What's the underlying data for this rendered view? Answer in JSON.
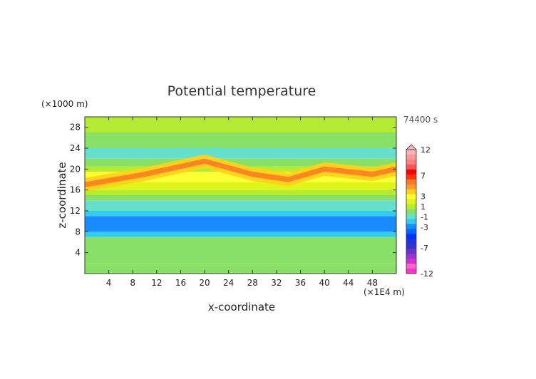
{
  "chart_data": {
    "type": "heatmap",
    "title": "Potential temperature",
    "xlabel": "x-coordinate",
    "ylabel": "z-coordinate",
    "x_unit": "(×1E4 m)",
    "y_unit": "(×1000 m)",
    "time_label": "74400 s",
    "xlim": [
      0,
      52
    ],
    "ylim": [
      0,
      30
    ],
    "x_ticks": [
      4,
      8,
      12,
      16,
      20,
      24,
      28,
      32,
      36,
      40,
      44,
      48
    ],
    "y_ticks": [
      4,
      8,
      12,
      16,
      20,
      24,
      28
    ],
    "colorbar": {
      "levels": [
        -12,
        -11,
        -10,
        -9,
        -8,
        -7,
        -6,
        -5,
        -4,
        -3,
        -2,
        -1,
        0,
        1,
        2,
        3,
        4,
        5,
        6,
        7,
        8,
        9,
        10,
        11,
        12
      ],
      "labeled_levels": [
        12,
        7,
        3,
        1,
        -1,
        -3,
        -7,
        -12
      ],
      "colors": [
        "#ff33cc",
        "#ff66cc",
        "#cc33cc",
        "#9933cc",
        "#6633cc",
        "#3333cc",
        "#1f33e6",
        "#0033ff",
        "#0066ff",
        "#1a8cff",
        "#33ccee",
        "#66e0cc",
        "#88e066",
        "#b5ec33",
        "#dff51c",
        "#ffff33",
        "#ffd21a",
        "#ff9933",
        "#ff7722",
        "#ff3311",
        "#ff0000",
        "#ff5555",
        "#ff8080",
        "#ff9999",
        "#ffb3b3"
      ],
      "extend_top": true
    },
    "bands": [
      {
        "z_from": 0,
        "z_to": 2,
        "value": 0.5
      },
      {
        "z_from": 2,
        "z_to": 7,
        "value": 0
      },
      {
        "z_from": 7,
        "z_to": 8,
        "value": -2
      },
      {
        "z_from": 8,
        "z_to": 11,
        "value": -3
      },
      {
        "z_from": 11,
        "z_to": 12,
        "value": -2
      },
      {
        "z_from": 12,
        "z_to": 14,
        "value": -0.5
      },
      {
        "z_from": 14,
        "z_to": 15,
        "value": 0.5
      },
      {
        "z_from": 15,
        "z_to": 16,
        "value": 1.5
      },
      {
        "z_from": 16,
        "z_to": 17.5,
        "value": 2
      },
      {
        "z_from": 17.5,
        "z_to": 19.5,
        "value": 3
      },
      {
        "z_from": 19.5,
        "z_to": 20.5,
        "value": 1
      },
      {
        "z_from": 20.5,
        "z_to": 22,
        "value": 0
      },
      {
        "z_from": 22,
        "z_to": 24,
        "value": -0.5
      },
      {
        "z_from": 24,
        "z_to": 27,
        "value": 0.5
      },
      {
        "z_from": 27,
        "z_to": 30,
        "value": 1
      }
    ],
    "warm_layer": [
      [
        0,
        17
      ],
      [
        10,
        19
      ],
      [
        20,
        21.5
      ],
      [
        28,
        19
      ],
      [
        34,
        18
      ],
      [
        40,
        20
      ],
      [
        48,
        19
      ],
      [
        52,
        20
      ]
    ]
  }
}
